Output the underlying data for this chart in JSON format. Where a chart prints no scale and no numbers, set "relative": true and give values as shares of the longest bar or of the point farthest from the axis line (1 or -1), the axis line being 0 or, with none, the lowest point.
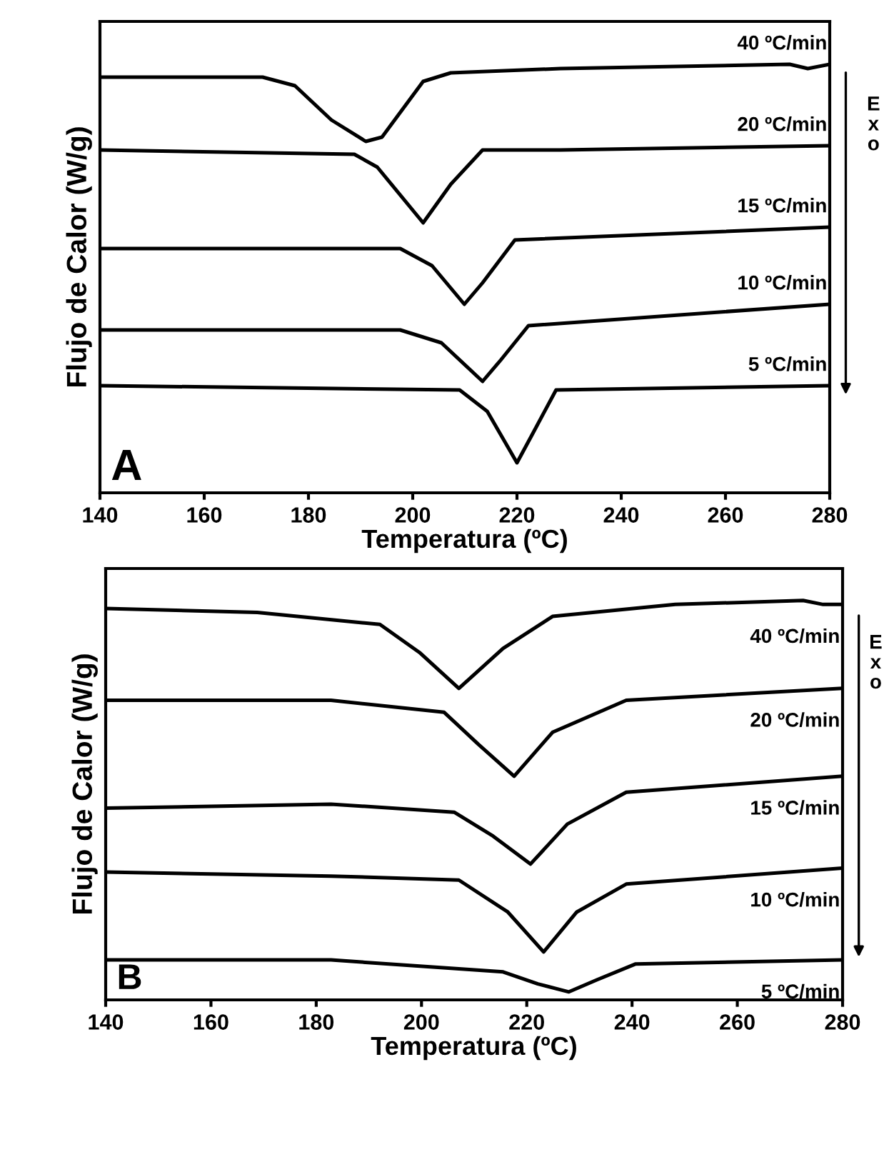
{
  "chart_data": [
    {
      "type": "line",
      "relative": true,
      "xlabel": "Temperatura (ºC)",
      "ylabel": "Flujo de Calor (W/g)",
      "xlim": [
        140,
        280
      ],
      "xticks": [
        140,
        160,
        180,
        200,
        220,
        240,
        260,
        280
      ],
      "tick_labels": "x",
      "grid": false,
      "legend": false,
      "marker": "none",
      "line_style": "solid",
      "annotations": [
        "A",
        "Exo"
      ],
      "series": [
        {
          "name": "40 ºC/min",
          "color": "#000000",
          "x": [
            140,
            171.2,
            177.4,
            184.4,
            191,
            194.1,
            202,
            207.3,
            228.3,
            272.3,
            275.8,
            280
          ],
          "values": [
            0.97,
            0.97,
            0.95,
            0.87,
            0.82,
            0.83,
            0.96,
            0.98,
            0.99,
            1.0,
            0.99,
            1.0
          ]
        },
        {
          "name": "20 ºC/min",
          "color": "#000000",
          "x": [
            140,
            188.8,
            193.2,
            202,
            207.3,
            213.4,
            228.3,
            280
          ],
          "values": [
            0.8,
            0.79,
            0.76,
            0.63,
            0.72,
            0.8,
            0.8,
            0.81
          ]
        },
        {
          "name": "15 ºC/min",
          "color": "#000000",
          "x": [
            140,
            197.6,
            203.7,
            209.9,
            213.4,
            219.6,
            280
          ],
          "values": [
            0.57,
            0.57,
            0.53,
            0.44,
            0.49,
            0.59,
            0.62
          ]
        },
        {
          "name": "10 ºC/min",
          "color": "#000000",
          "x": [
            140,
            197.6,
            205.5,
            213.4,
            216.9,
            222.2,
            280
          ],
          "values": [
            0.38,
            0.38,
            0.35,
            0.26,
            0.31,
            0.39,
            0.44
          ]
        },
        {
          "name": "5 ºC/min",
          "color": "#000000",
          "x": [
            140,
            209,
            214.3,
            220,
            223.1,
            227.5,
            280
          ],
          "values": [
            0.25,
            0.24,
            0.19,
            0.07,
            0.14,
            0.24,
            0.25
          ]
        }
      ]
    },
    {
      "type": "line",
      "relative": true,
      "xlabel": "Temperatura (ºC)",
      "ylabel": "Flujo de Calor (W/g)",
      "xlim": [
        140,
        280
      ],
      "xticks": [
        140,
        160,
        180,
        200,
        220,
        240,
        260,
        280
      ],
      "tick_labels": "x",
      "grid": false,
      "legend": false,
      "marker": "none",
      "line_style": "solid",
      "annotations": [
        "B",
        "Exo"
      ],
      "series": [
        {
          "name": "40 ºC/min",
          "color": "#000000",
          "x": [
            140,
            168.8,
            192.1,
            199.6,
            207.1,
            215.5,
            224.9,
            248.2,
            272.5,
            276.3,
            280
          ],
          "values": [
            0.98,
            0.97,
            0.94,
            0.87,
            0.78,
            0.88,
            0.96,
            0.99,
            1.0,
            0.99,
            0.99
          ]
        },
        {
          "name": "20 ºC/min",
          "color": "#000000",
          "x": [
            140,
            182.8,
            204.3,
            210.8,
            217.6,
            224.9,
            238.9,
            280
          ],
          "values": [
            0.75,
            0.75,
            0.72,
            0.64,
            0.56,
            0.67,
            0.75,
            0.78
          ]
        },
        {
          "name": "15 ºC/min",
          "color": "#000000",
          "x": [
            140,
            182.8,
            206.2,
            213.6,
            220.7,
            227.7,
            238.9,
            280
          ],
          "values": [
            0.48,
            0.49,
            0.47,
            0.41,
            0.34,
            0.44,
            0.52,
            0.56
          ]
        },
        {
          "name": "10 ºC/min",
          "color": "#000000",
          "x": [
            140,
            182.8,
            207.1,
            216.4,
            223.2,
            229.5,
            238.9,
            280
          ],
          "values": [
            0.32,
            0.31,
            0.3,
            0.22,
            0.12,
            0.22,
            0.29,
            0.33
          ]
        },
        {
          "name": "5 ºC/min",
          "color": "#000000",
          "x": [
            140,
            182.8,
            215.5,
            222.1,
            228,
            233.3,
            240.7,
            280
          ],
          "values": [
            0.1,
            0.1,
            0.07,
            0.04,
            0.02,
            0.05,
            0.09,
            0.1
          ]
        }
      ]
    }
  ]
}
